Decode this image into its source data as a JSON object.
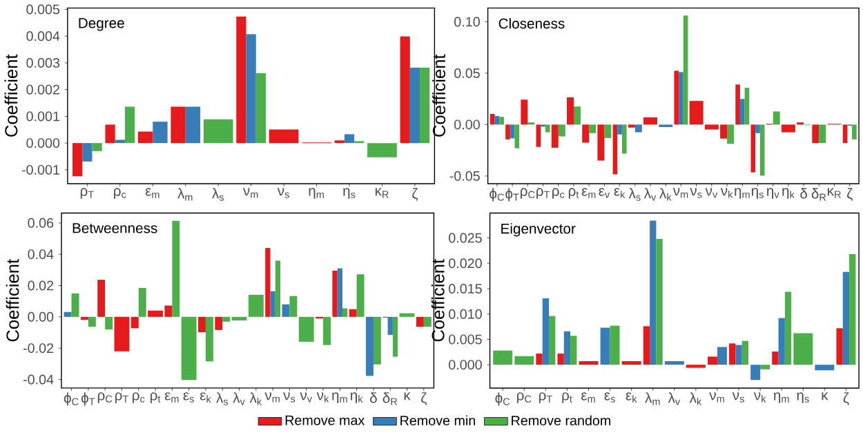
{
  "chart_data": [
    {
      "type": "bar",
      "title": "Degree",
      "ylabel": "Coefficient",
      "categories": [
        "ρ$_{T}$",
        "ρ$_{c}$",
        "ε$_{m}$",
        "λ$_{m}$",
        "λ$_{s}$",
        "ν$_{m}$",
        "ν$_{s}$",
        "η$_{m}$",
        "η$_{s}$",
        "κ$_{R}$",
        "ζ"
      ],
      "series": [
        {
          "color": "#e41a1c",
          "values": [
            -0.00124,
            0.00069,
            0.00043,
            0.00136,
            null,
            0.00473,
            0.00051,
            2e-05,
            0.0001,
            null,
            0.00399
          ]
        },
        {
          "color": "#377eb8",
          "values": [
            -0.00069,
            0.00012,
            0.0008,
            0.00136,
            null,
            0.00407,
            null,
            null,
            0.00033,
            null,
            0.00282
          ]
        },
        {
          "color": "#4daf4a",
          "values": [
            -0.0003,
            0.00136,
            null,
            null,
            0.00089,
            0.00261,
            null,
            null,
            7e-05,
            -0.00053,
            0.00282
          ]
        }
      ],
      "ylim": [
        -0.00152,
        0.00505
      ],
      "yticks": [
        -0.001,
        {
          "value": 0,
          "label": "0.000"
        },
        0.001,
        0.002,
        0.003,
        0.004,
        0.005
      ]
    },
    {
      "type": "bar",
      "title": "Closeness",
      "ylabel": "Coefficient",
      "categories": [
        "ϕ$_{C}$",
        "ϕ$_{T}$",
        "ρ$_{C}$",
        "ρ$_{T}$",
        "ρ$_{c}$",
        "ρ$_{t}$",
        "ε$_{m}$",
        "ε$_{v}$",
        "ε$_{k}$",
        "λ$_{s}$",
        "λ$_{v}$",
        "λ$_{k}$",
        "ν$_{m}$",
        "ν$_{s}$",
        "ν$_{v}$",
        "ν$_{k}$",
        "η$_{m}$",
        "η$_{s}$",
        "η$_{v}$",
        "η$_{k}$",
        "δ",
        "δ$_{R}$",
        "κ$_{R}$",
        "ζ"
      ],
      "series": [
        {
          "color": "#e41a1c",
          "values": [
            0.0104,
            -0.0144,
            0.0243,
            -0.0217,
            -0.0225,
            0.0265,
            -0.0176,
            -0.035,
            -0.0484,
            -0.0029,
            0.007,
            null,
            0.0524,
            0.023,
            -0.0048,
            -0.0136,
            0.039,
            -0.0465,
            0.0008,
            -0.0075,
            0.0021,
            -0.0179,
            0.0008,
            -0.0179
          ]
        },
        {
          "color": "#377eb8",
          "values": [
            0.0083,
            -0.0134,
            null,
            -0.0021,
            null,
            null,
            null,
            null,
            -0.0096,
            -0.0075,
            null,
            -0.0024,
            0.0511,
            null,
            null,
            null,
            0.0249,
            -0.0083,
            null,
            null,
            null,
            null,
            null,
            -0.0011
          ]
        },
        {
          "color": "#4daf4a",
          "values": [
            0.0075,
            -0.023,
            0.0021,
            -0.0075,
            -0.0115,
            0.0176,
            -0.0083,
            -0.0131,
            -0.0283,
            null,
            null,
            null,
            0.1061,
            null,
            null,
            -0.0187,
            0.0358,
            -0.0497,
            0.0128,
            null,
            -0.0005,
            -0.0179,
            null,
            -0.0144
          ]
        }
      ],
      "ylim": [
        -0.0575,
        0.1134
      ],
      "yticks": [
        -0.05,
        {
          "value": 0,
          "label": "0.00"
        },
        0.05,
        {
          "value": 0.1,
          "label": "0.10"
        }
      ]
    },
    {
      "type": "bar",
      "title": "Betweenness",
      "ylabel": "Coefficient",
      "categories": [
        "ϕ$_{C}$",
        "ϕ$_{T}$",
        "ρ$_{C}$",
        "ρ$_{T}$",
        "ρ$_{c}$",
        "ρ$_{t}$",
        "ε$_{m}$",
        "ε$_{s}$",
        "ε$_{k}$",
        "λ$_{s}$",
        "λ$_{v}$",
        "λ$_{k}$",
        "ν$_{m}$",
        "ν$_{s}$",
        "ν$_{v}$",
        "ν$_{k}$",
        "η$_{m}$",
        "η$_{k}$",
        "δ",
        "δ$_{R}$",
        "κ",
        "ζ"
      ],
      "series": [
        {
          "color": "#e41a1c",
          "values": [
            null,
            -0.0019,
            0.0237,
            -0.022,
            -0.0072,
            0.004,
            0.0072,
            null,
            -0.0098,
            -0.0084,
            null,
            null,
            0.044,
            null,
            null,
            -0.001,
            0.0295,
            0.0049,
            null,
            -0.0005,
            null,
            -0.0063
          ]
        },
        {
          "color": "#377eb8",
          "values": [
            0.0031,
            null,
            null,
            null,
            null,
            null,
            null,
            null,
            null,
            null,
            null,
            null,
            0.0164,
            0.008,
            null,
            null,
            0.031,
            null,
            -0.0377,
            -0.0115,
            null,
            null
          ]
        },
        {
          "color": "#4daf4a",
          "values": [
            0.015,
            -0.0063,
            -0.008,
            null,
            0.0185,
            null,
            0.0614,
            -0.0403,
            -0.0284,
            -0.0031,
            -0.0023,
            0.0141,
            0.0359,
            0.0133,
            -0.0159,
            -0.018,
            0.0054,
            0.0272,
            -0.0304,
            -0.0255,
            0.0023,
            -0.0063
          ]
        }
      ],
      "ylim": [
        -0.0455,
        0.0663
      ],
      "yticks": [
        -0.04,
        -0.02,
        {
          "value": 0,
          "label": "0.00"
        },
        0.02,
        0.04,
        0.06
      ]
    },
    {
      "type": "bar",
      "title": "Eigenvector",
      "ylabel": "Coefficient",
      "categories": [
        "ϕ$_{C}$",
        "ρ$_{C}$",
        "ρ$_{T}$",
        "ρ$_{t}$",
        "ε$_{m}$",
        "ε$_{s}$",
        "ε$_{k}$",
        "λ$_{m}$",
        "λ$_{v}$",
        "λ$_{k}$",
        "ν$_{m}$",
        "ν$_{s}$",
        "ν$_{k}$",
        "η$_{m}$",
        "η$_{s}$",
        "κ",
        "ζ"
      ],
      "series": [
        {
          "name": "Remove max",
          "color": "#e41a1c",
          "values": [
            null,
            null,
            0.0022,
            0.0022,
            0.0007,
            null,
            0.0007,
            0.0076,
            null,
            -0.0006,
            0.0016,
            0.0042,
            null,
            0.0026,
            null,
            null,
            0.0072
          ]
        },
        {
          "name": "Remove min",
          "color": "#377eb8",
          "values": [
            null,
            null,
            0.0131,
            0.0066,
            null,
            0.0073,
            null,
            0.0284,
            0.0007,
            null,
            0.0035,
            0.0039,
            -0.003,
            0.0092,
            null,
            -0.0011,
            0.0183
          ]
        },
        {
          "name": "Remove random",
          "color": "#4daf4a",
          "values": [
            0.0028,
            0.0017,
            0.0096,
            0.0057,
            null,
            0.0077,
            null,
            0.0248,
            null,
            null,
            null,
            0.0047,
            -0.0009,
            0.0144,
            0.0062,
            null,
            0.0218
          ]
        }
      ],
      "ylim": [
        -0.0046,
        0.0299
      ],
      "yticks": [
        {
          "value": 0,
          "label": "0.000"
        },
        0.005,
        {
          "value": 0.01,
          "label": "0.010"
        },
        0.015,
        {
          "value": 0.02,
          "label": "0.020"
        },
        0.025
      ],
      "legend": "bottom"
    }
  ]
}
